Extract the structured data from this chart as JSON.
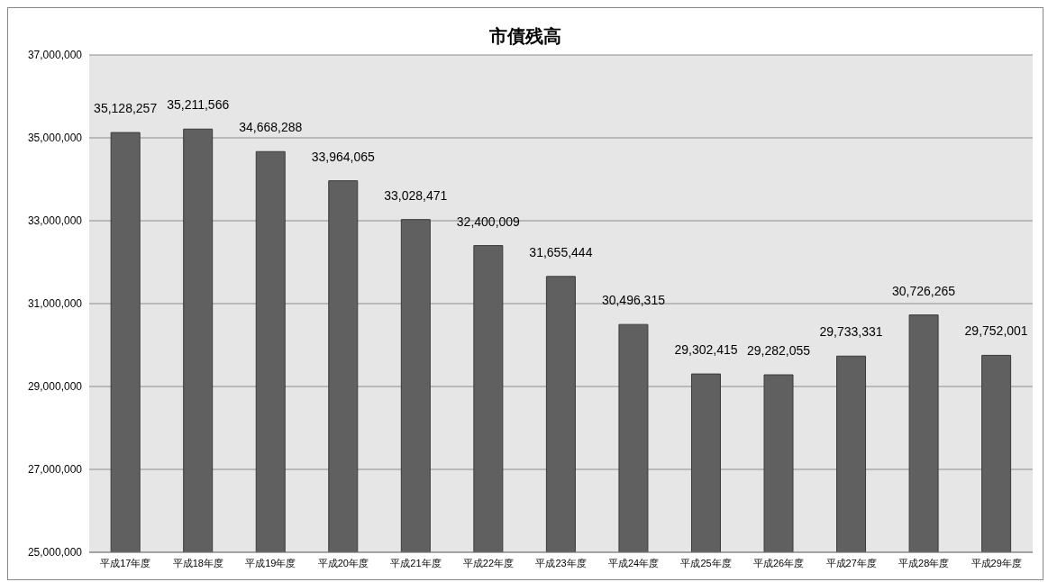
{
  "chart_data": {
    "type": "bar",
    "title": "市債残高",
    "categories": [
      "平成17年度",
      "平成18年度",
      "平成19年度",
      "平成20年度",
      "平成21年度",
      "平成22年度",
      "平成23年度",
      "平成24年度",
      "平成25年度",
      "平成26年度",
      "平成27年度",
      "平成28年度",
      "平成29年度"
    ],
    "values": [
      35128257,
      35211566,
      34668288,
      33964065,
      33028471,
      32400009,
      31655444,
      30496315,
      29302415,
      29282055,
      29733331,
      30726265,
      29752001
    ],
    "value_labels": [
      "35,128,257",
      "35,211,566",
      "34,668,288",
      "33,964,065",
      "33,028,471",
      "32,400,009",
      "31,655,444",
      "30,496,315",
      "29,302,415",
      "29,282,055",
      "29,733,331",
      "30,726,265",
      "29,752,001"
    ],
    "color": "#606060",
    "ylim": [
      25000000,
      37000000
    ],
    "yticks": [
      {
        "value": 25000000,
        "label": "25,000,000"
      },
      {
        "value": 27000000,
        "label": "27,000,000"
      },
      {
        "value": 29000000,
        "label": "29,000,000"
      },
      {
        "value": 31000000,
        "label": "31,000,000"
      },
      {
        "value": 33000000,
        "label": "33,000,000"
      },
      {
        "value": 35000000,
        "label": "35,000,000"
      },
      {
        "value": 37000000,
        "label": "37,000,000"
      }
    ],
    "grid": "y"
  }
}
